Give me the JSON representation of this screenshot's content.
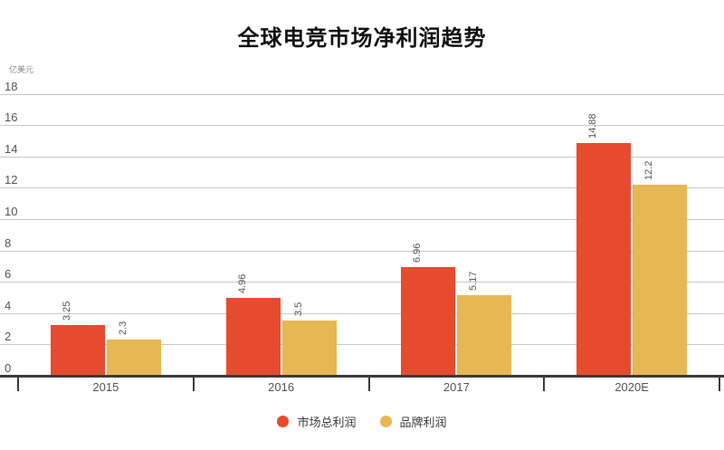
{
  "title": "全球电竞市场净利润趋势",
  "unit_label": "亿美元",
  "chart_data": {
    "type": "bar",
    "categories": [
      "2015",
      "2016",
      "2017",
      "2020E"
    ],
    "series": [
      {
        "name": "市场总利润",
        "color": "#E74B2F",
        "values": [
          3.25,
          4.96,
          6.96,
          14.88
        ]
      },
      {
        "name": "品牌利润",
        "color": "#E7B754",
        "values": [
          2.3,
          3.5,
          5.17,
          12.2
        ]
      }
    ],
    "value_labels": [
      [
        "3.25",
        "4.96",
        "6.96",
        "14.88"
      ],
      [
        "2.3",
        "3.5",
        "5.17",
        "12.2"
      ]
    ],
    "ylabel": "亿美元",
    "ylim": [
      0,
      18
    ],
    "ytick_step": 2,
    "grid": true,
    "legend_position": "bottom",
    "colors": {
      "gridline": "#c8c8c8",
      "axis": "#3b3b3b",
      "text": "#555555",
      "title": "#111111"
    }
  }
}
